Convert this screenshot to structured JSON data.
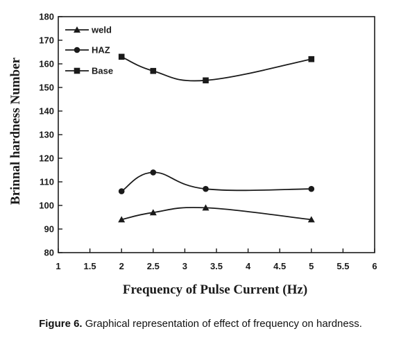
{
  "chart_data": {
    "type": "line",
    "title": "",
    "xlabel": "Frequency of Pulse Current (Hz)",
    "ylabel": "Brinnal hardness Number",
    "xlim": [
      1,
      6
    ],
    "ylim": [
      80,
      180
    ],
    "xticks": [
      "1",
      "1.5",
      "2",
      "2.5",
      "3",
      "3.5",
      "4",
      "4.5",
      "5",
      "5.5",
      "6"
    ],
    "yticks": [
      "80",
      "90",
      "100",
      "110",
      "120",
      "130",
      "140",
      "150",
      "160",
      "170",
      "180"
    ],
    "x": [
      2,
      2.5,
      3.33,
      5
    ],
    "series": [
      {
        "name": "weld",
        "marker": "triangle",
        "values": [
          94,
          97,
          99,
          94
        ]
      },
      {
        "name": "HAZ",
        "marker": "circle",
        "values": [
          106,
          114,
          107,
          107
        ]
      },
      {
        "name": "Base",
        "marker": "square",
        "values": [
          163,
          157,
          153,
          162
        ]
      }
    ],
    "grid": false,
    "legend": "top-left",
    "line_color": "#1a1a1a"
  },
  "caption": {
    "label": "Figure 6.",
    "text": " Graphical representation of effect of frequency on hardness."
  }
}
